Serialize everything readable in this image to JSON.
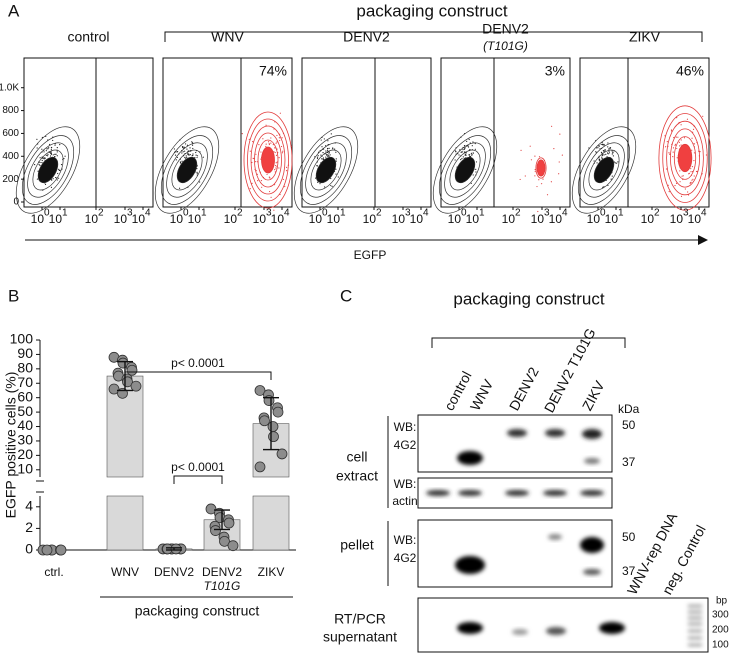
{
  "panel_a": {
    "label": "A",
    "group_label": "packaging construct",
    "x_label": "EGFP",
    "plots": [
      {
        "title": "control"
      },
      {
        "title": "WNV",
        "percent": "74%"
      },
      {
        "title": "DENV2"
      },
      {
        "title": "DENV2",
        "subtitle": "(T101G)",
        "percent": "3%"
      },
      {
        "title": "ZIKV",
        "percent": "46%"
      }
    ],
    "ylim": [
      0,
      1260
    ],
    "yticks": [
      0,
      200,
      400,
      600,
      800,
      {
        "value": 1000,
        "label": "1.0K"
      }
    ],
    "xtick_base": "10",
    "xticks": [
      0,
      1,
      2,
      3,
      4
    ]
  },
  "chart_data": {
    "type": "bar",
    "label": "B",
    "y_label": "EGFP positive cells (%)",
    "categories": [
      "ctrl.",
      "WNV",
      "DENV2",
      "DENV2",
      "ZIKV"
    ],
    "category_sublabels": [
      null,
      null,
      null,
      "T101G",
      null
    ],
    "values": [
      0,
      75,
      0.1,
      2.8,
      42
    ],
    "errors": [
      0,
      10,
      0.1,
      0.9,
      18
    ],
    "points": [
      [
        0,
        0,
        0,
        0,
        0,
        0
      ],
      [
        88,
        86,
        84,
        81,
        79,
        77,
        75,
        73,
        71,
        68,
        66,
        63
      ],
      [
        0.1,
        0.1,
        0.1,
        0.1,
        0.1,
        0.1,
        0.1,
        0.1
      ],
      [
        3.8,
        3.4,
        3.0,
        2.8,
        2.5,
        2.2,
        1.8,
        1.2,
        0.8,
        0.4
      ],
      [
        65,
        62,
        58,
        53,
        50,
        46,
        44,
        40,
        33,
        21,
        12
      ]
    ],
    "color": "#d9d9d9",
    "point_color": "#8c8c8c",
    "y_segments": [
      {
        "ylim": [
          0,
          5
        ],
        "yticks": [
          0,
          2,
          4
        ]
      },
      {
        "ylim": [
          5,
          100
        ],
        "yticks": [
          10,
          20,
          30,
          40,
          50,
          60,
          70,
          80,
          90,
          100
        ]
      }
    ],
    "group_label": "packaging construct",
    "annotations": [
      {
        "text": "p< 0.0001",
        "from": 1,
        "to": 4
      },
      {
        "text": "p< 0.0001",
        "from": 2,
        "to": 3
      }
    ]
  },
  "panel_c": {
    "label": "C",
    "group_label": "packaging construct",
    "lanes": [
      "control",
      "WNV",
      "DENV2",
      "DENV2 T101G",
      "ZIKV"
    ],
    "control_lanes": [
      "WNV-rep DNA",
      "neg. Control"
    ],
    "rows": [
      {
        "label": [
          "cell",
          "extract"
        ],
        "blots": [
          [
            "WB:",
            "4G2"
          ],
          [
            "WB:",
            "actin"
          ]
        ]
      },
      {
        "label": [
          "pellet"
        ],
        "blots": [
          [
            "WB:",
            "4G2"
          ]
        ]
      },
      {
        "label": [
          "RT/PCR",
          "supernatant"
        ]
      }
    ],
    "protein_unit": "kDa",
    "protein_markers": [
      50,
      37,
      50,
      37
    ],
    "dna_unit": "bp",
    "dna_markers": [
      300,
      200,
      100
    ]
  }
}
